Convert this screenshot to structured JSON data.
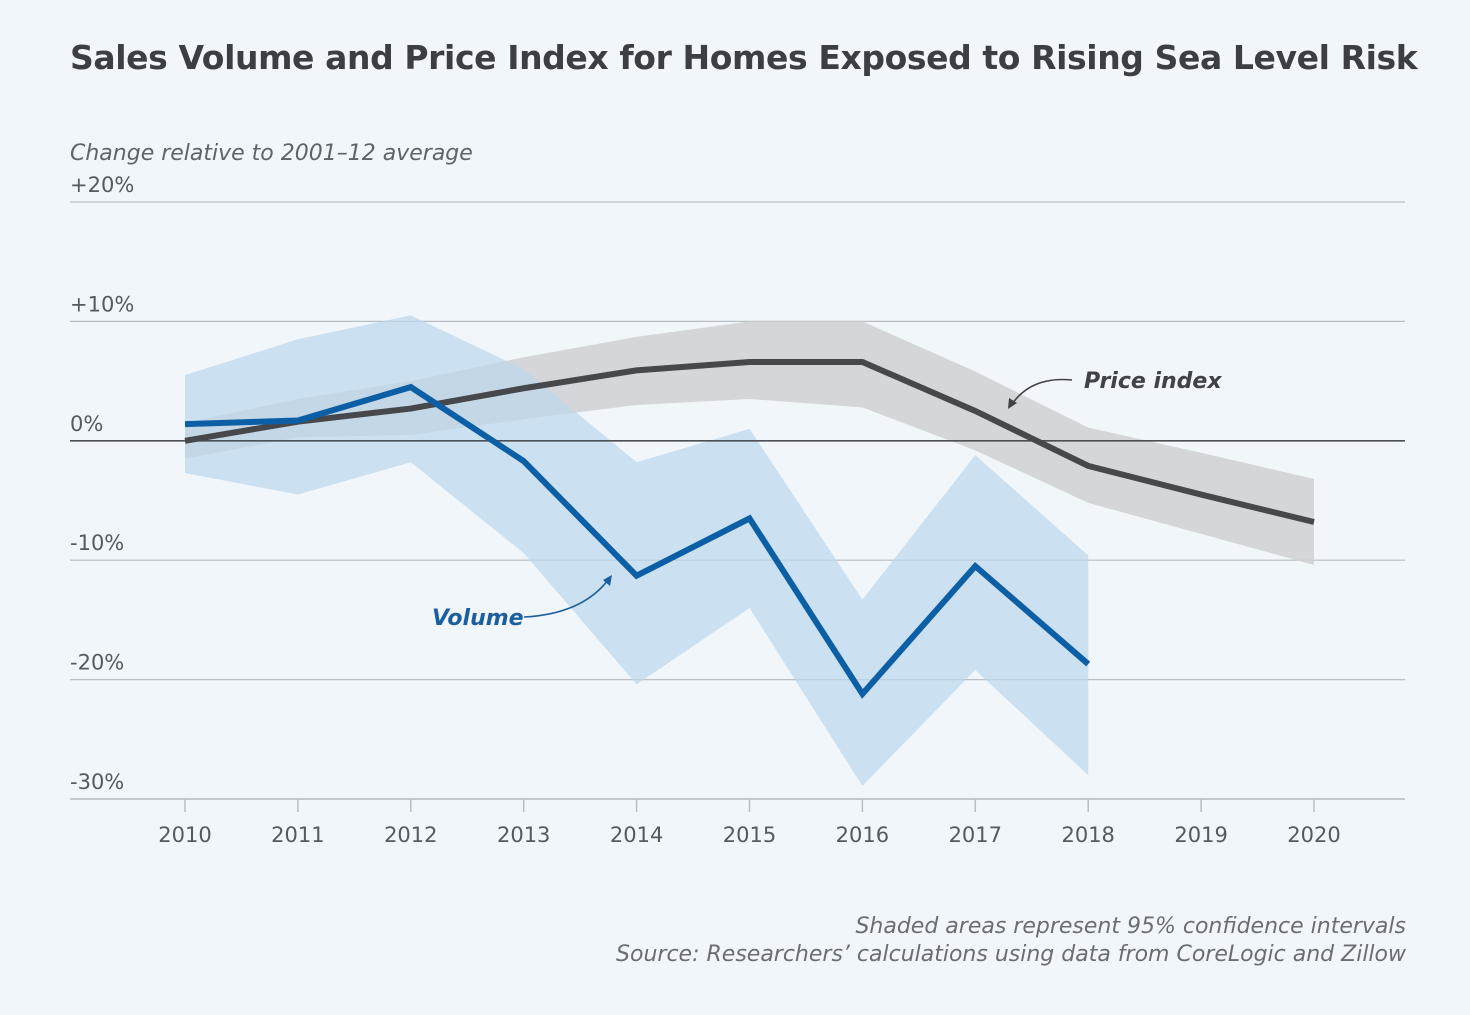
{
  "chart_data": {
    "type": "line",
    "title": "Sales Volume and Price Index for Homes Exposed to Rising Sea Level Risk",
    "ylabel": "Change relative to 2001–12 average",
    "xlabel": "",
    "x": [
      2010,
      2011,
      2012,
      2013,
      2014,
      2015,
      2016,
      2017,
      2018,
      2019,
      2020
    ],
    "xticks": [
      "2010",
      "2011",
      "2012",
      "2013",
      "2014",
      "2015",
      "2016",
      "2017",
      "2018",
      "2019",
      "2020"
    ],
    "ylim": [
      -30,
      20
    ],
    "yticks": [
      20,
      10,
      0,
      -10,
      -20,
      -30
    ],
    "ytick_labels": [
      "+20%",
      "+10%",
      "0%",
      "-10%",
      "-20%",
      "-30%"
    ],
    "grid": true,
    "series": [
      {
        "name": "Price index",
        "color": "#46484c",
        "band_color": "#cfd0d4",
        "x": [
          2010,
          2011,
          2012,
          2013,
          2014,
          2015,
          2016,
          2017,
          2018,
          2019,
          2020
        ],
        "values": [
          0,
          1.6,
          2.7,
          4.4,
          5.9,
          6.6,
          6.6,
          2.5,
          -2.1,
          -4.5,
          -6.8
        ],
        "ci_upper": [
          1.5,
          3.5,
          5.0,
          7.0,
          8.7,
          10.0,
          10.0,
          5.8,
          1.1,
          -1.0,
          -3.2
        ],
        "ci_lower": [
          -1.5,
          0.3,
          0.5,
          1.8,
          3.0,
          3.5,
          2.8,
          -0.8,
          -5.2,
          -7.8,
          -10.4
        ]
      },
      {
        "name": "Volume",
        "color": "#0c5fa5",
        "band_color": "#bcd7ec",
        "x": [
          2010,
          2011,
          2012,
          2013,
          2014,
          2015,
          2016,
          2017,
          2018
        ],
        "values": [
          1.4,
          1.7,
          4.5,
          -1.7,
          -11.3,
          -6.5,
          -21.2,
          -10.5,
          -18.7
        ],
        "ci_upper": [
          5.5,
          8.5,
          10.5,
          6.0,
          -1.8,
          1.0,
          -13.3,
          -1.2,
          -9.6
        ],
        "ci_lower": [
          -2.7,
          -4.5,
          -1.8,
          -9.4,
          -20.4,
          -14.0,
          -28.9,
          -19.2,
          -28.0
        ]
      }
    ],
    "annotations": [
      {
        "text": "Price index",
        "series": "Price index"
      },
      {
        "text": "Volume",
        "series": "Volume"
      }
    ]
  },
  "notes": {
    "ci": "Shaded areas represent 95% confidence intervals",
    "source": "Source: Researchers’ calculations using data from CoreLogic and  Zillow"
  },
  "colors": {
    "background": "#f1f6fa",
    "grid": "#b8bec4",
    "zero_line": "#4c4f53"
  }
}
